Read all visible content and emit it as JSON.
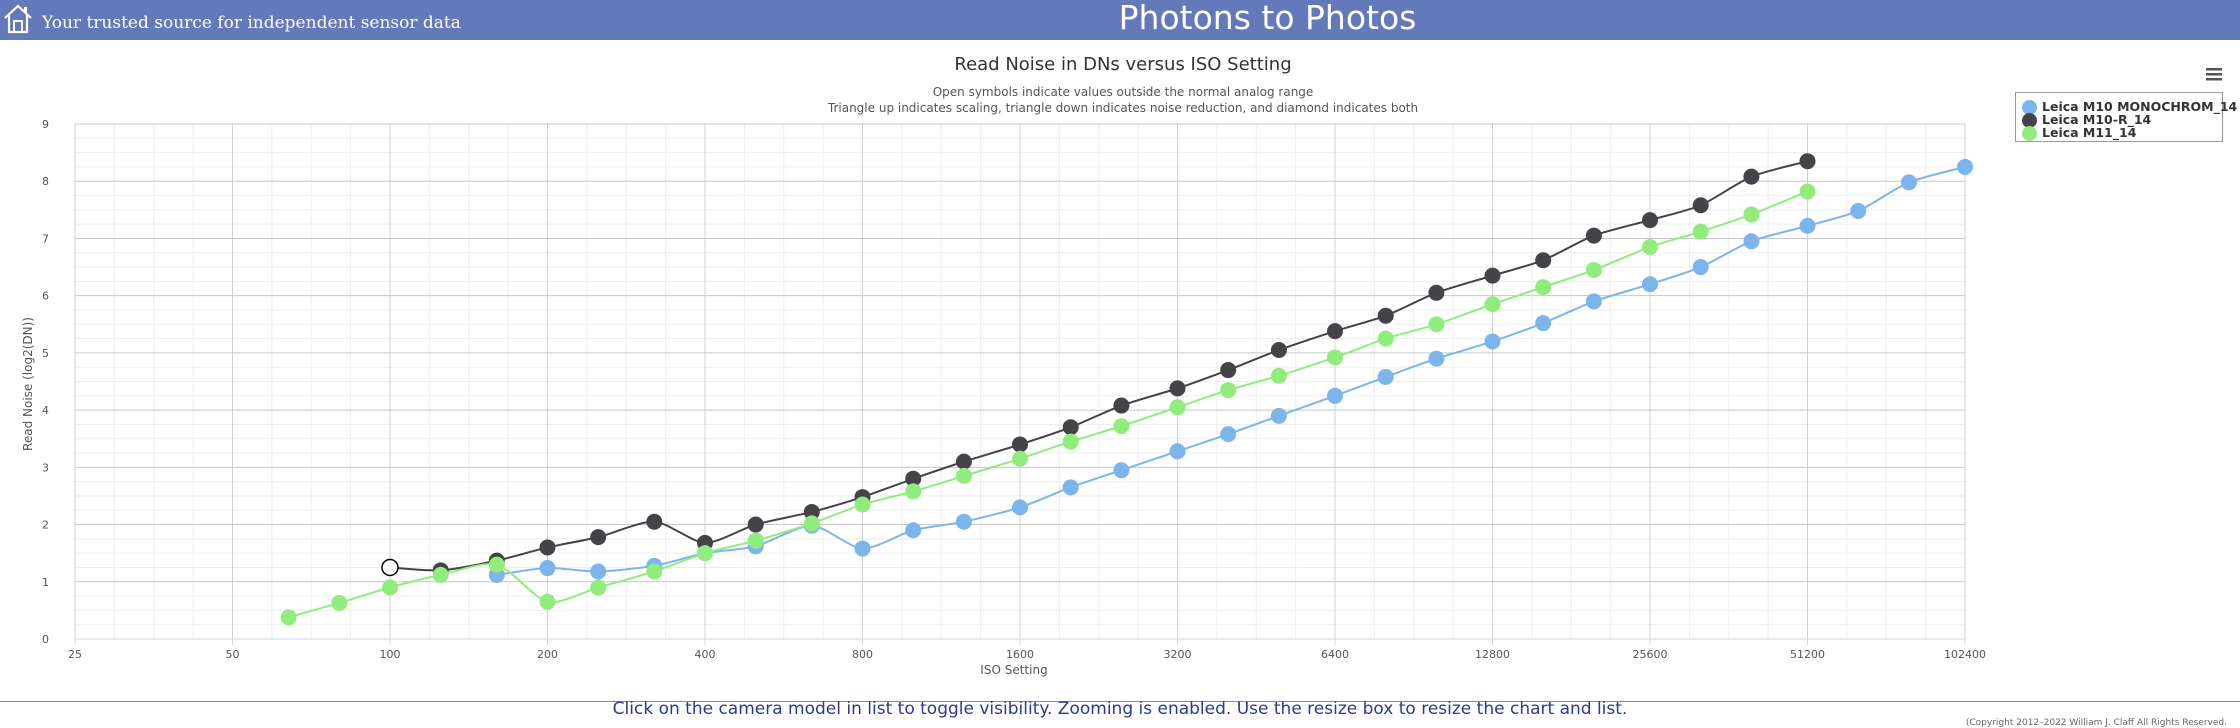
{
  "header": {
    "tagline": "Your trusted source for independent sensor data",
    "site_title": "Photons to Photos",
    "icon": "home-icon"
  },
  "menu_icon": "hamburger-menu-icon",
  "chart_data": {
    "type": "line",
    "title": "Read Noise in DNs versus ISO Setting",
    "subtitle_lines": [
      "Open symbols indicate values outside the normal analog range",
      "Triangle up indicates scaling, triangle down indicates noise reduction, and diamond indicates both"
    ],
    "xlabel": "ISO Setting",
    "ylabel": "Read Noise (log2(DN))",
    "x_scale": "log2",
    "xlim": [
      25,
      102400
    ],
    "ylim": [
      0,
      9
    ],
    "x_ticks": [
      25,
      50,
      100,
      200,
      400,
      800,
      1600,
      3200,
      6400,
      12800,
      25600,
      51200,
      102400
    ],
    "y_ticks": [
      0,
      1,
      2,
      3,
      4,
      5,
      6,
      7,
      8,
      9
    ],
    "grid": true,
    "legend_position": "top-right",
    "series": [
      {
        "name": "Leica M10 MONOCHROM_14",
        "color": "#7cb5ec",
        "points": [
          [
            160,
            1.12
          ],
          [
            200,
            1.24
          ],
          [
            250,
            1.18
          ],
          [
            320,
            1.28
          ],
          [
            400,
            1.5
          ],
          [
            500,
            1.62
          ],
          [
            640,
            1.98
          ],
          [
            800,
            1.58
          ],
          [
            1000,
            1.9
          ],
          [
            1250,
            2.05
          ],
          [
            1600,
            2.3
          ],
          [
            2000,
            2.65
          ],
          [
            2500,
            2.95
          ],
          [
            3200,
            3.28
          ],
          [
            4000,
            3.58
          ],
          [
            5000,
            3.9
          ],
          [
            6400,
            4.25
          ],
          [
            8000,
            4.58
          ],
          [
            10000,
            4.9
          ],
          [
            12800,
            5.2
          ],
          [
            16000,
            5.52
          ],
          [
            20000,
            5.9
          ],
          [
            25600,
            6.2
          ],
          [
            32000,
            6.5
          ],
          [
            40000,
            6.95
          ],
          [
            51200,
            7.22
          ],
          [
            64000,
            7.48
          ],
          [
            80000,
            7.98
          ],
          [
            102400,
            8.25
          ]
        ]
      },
      {
        "name": "Leica M10-R_14",
        "color": "#434348",
        "points": [
          [
            100,
            1.25,
            "open"
          ],
          [
            125,
            1.2
          ],
          [
            160,
            1.37
          ],
          [
            200,
            1.6
          ],
          [
            250,
            1.78
          ],
          [
            320,
            2.05
          ],
          [
            400,
            1.68
          ],
          [
            500,
            2.0
          ],
          [
            640,
            2.22
          ],
          [
            800,
            2.48
          ],
          [
            1000,
            2.8
          ],
          [
            1250,
            3.1
          ],
          [
            1600,
            3.4
          ],
          [
            2000,
            3.7
          ],
          [
            2500,
            4.08
          ],
          [
            3200,
            4.38
          ],
          [
            4000,
            4.7
          ],
          [
            5000,
            5.05
          ],
          [
            6400,
            5.38
          ],
          [
            8000,
            5.65
          ],
          [
            10000,
            6.05
          ],
          [
            12800,
            6.35
          ],
          [
            16000,
            6.62
          ],
          [
            20000,
            7.05
          ],
          [
            25600,
            7.32
          ],
          [
            32000,
            7.58
          ],
          [
            40000,
            8.08
          ],
          [
            51200,
            8.35
          ]
        ]
      },
      {
        "name": "Leica M11_14",
        "color": "#90ed7d",
        "points": [
          [
            64,
            0.38
          ],
          [
            80,
            0.63
          ],
          [
            100,
            0.9
          ],
          [
            125,
            1.12
          ],
          [
            160,
            1.3
          ],
          [
            200,
            0.65
          ],
          [
            250,
            0.9
          ],
          [
            320,
            1.18
          ],
          [
            400,
            1.5
          ],
          [
            500,
            1.72
          ],
          [
            640,
            2.02
          ],
          [
            800,
            2.35
          ],
          [
            1000,
            2.58
          ],
          [
            1250,
            2.85
          ],
          [
            1600,
            3.15
          ],
          [
            2000,
            3.45
          ],
          [
            2500,
            3.72
          ],
          [
            3200,
            4.05
          ],
          [
            4000,
            4.35
          ],
          [
            5000,
            4.6
          ],
          [
            6400,
            4.92
          ],
          [
            8000,
            5.25
          ],
          [
            10000,
            5.5
          ],
          [
            12800,
            5.85
          ],
          [
            16000,
            6.15
          ],
          [
            20000,
            6.45
          ],
          [
            25600,
            6.85
          ],
          [
            32000,
            7.12
          ],
          [
            40000,
            7.42
          ],
          [
            51200,
            7.82
          ]
        ]
      }
    ]
  },
  "copyright": "(Copyright 2012–2022 William J. Claff All Rights Reserved.",
  "footer": {
    "instructions": "Click on the camera model in list to toggle visibility. Zooming is enabled. Use the resize box to resize the chart and list."
  }
}
